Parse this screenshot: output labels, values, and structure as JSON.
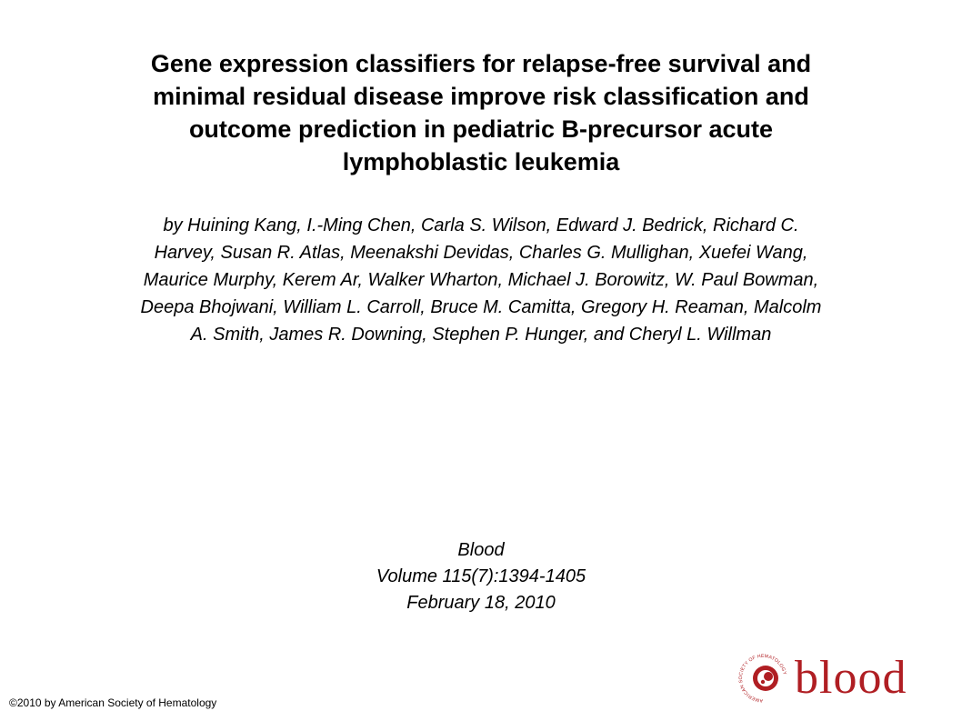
{
  "title_lines": [
    "Gene expression classifiers for relapse-free survival and",
    "minimal residual disease improve risk classification and",
    "outcome prediction in pediatric B-precursor acute",
    "lymphoblastic leukemia"
  ],
  "author_lines": [
    "by Huining Kang, I.-Ming Chen, Carla S. Wilson, Edward J. Bedrick, Richard C.",
    "Harvey, Susan R. Atlas, Meenakshi Devidas, Charles G. Mullighan, Xuefei Wang,",
    "Maurice Murphy, Kerem Ar, Walker Wharton, Michael J. Borowitz, W. Paul Bowman,",
    "Deepa Bhojwani, William L. Carroll, Bruce M. Camitta, Gregory H. Reaman, Malcolm",
    "A. Smith, James R. Downing, Stephen P. Hunger, and Cheryl L. Willman"
  ],
  "citation": {
    "journal": "Blood",
    "volume": "Volume 115(7):1394-1405",
    "date": "February 18, 2010"
  },
  "copyright": "©2010 by American Society of Hematology",
  "logo": {
    "word": "blood",
    "icon": "blood-journal-seal-icon",
    "seal_text": "AMERICAN SOCIETY OF HEMATOLOGY",
    "color": "#b01e23"
  }
}
